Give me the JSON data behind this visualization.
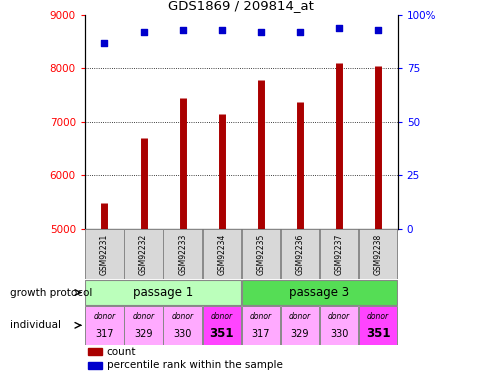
{
  "title": "GDS1869 / 209814_at",
  "samples": [
    "GSM92231",
    "GSM92232",
    "GSM92233",
    "GSM92234",
    "GSM92235",
    "GSM92236",
    "GSM92237",
    "GSM92238"
  ],
  "count_values": [
    5480,
    6700,
    7450,
    7150,
    7780,
    7380,
    8100,
    8050
  ],
  "percentile_values": [
    87,
    92,
    93,
    93,
    92,
    92,
    94,
    93
  ],
  "ylim_left": [
    5000,
    9000
  ],
  "ylim_right": [
    0,
    100
  ],
  "yticks_left": [
    5000,
    6000,
    7000,
    8000,
    9000
  ],
  "yticks_right": [
    0,
    25,
    50,
    75,
    100
  ],
  "bar_color": "#aa0000",
  "dot_color": "#0000cc",
  "passage1_color": "#bbffbb",
  "passage3_color": "#55dd55",
  "donor_colors_light": "#ffaaff",
  "donor_color_bold": "#ff44ff",
  "growth_protocol_label": "growth protocol",
  "individual_label": "individual",
  "legend_count": "count",
  "legend_percentile": "percentile rank within the sample",
  "passage1_label": "passage 1",
  "passage3_label": "passage 3",
  "donor_numbers": [
    "317",
    "329",
    "330",
    "351",
    "317",
    "329",
    "330",
    "351"
  ],
  "donor_bold": [
    false,
    false,
    false,
    true,
    false,
    false,
    false,
    true
  ]
}
